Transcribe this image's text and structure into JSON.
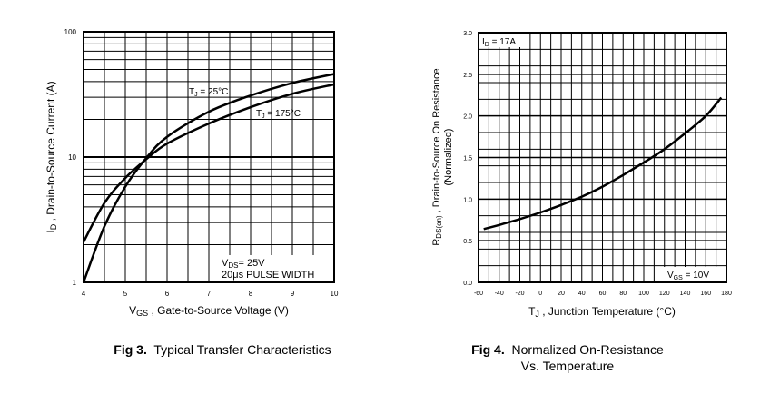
{
  "chart_data": [
    {
      "type": "line",
      "yscale": "log",
      "xlim": [
        4,
        10
      ],
      "ylim": [
        1,
        100
      ],
      "xticks": [
        "4",
        "5",
        "6",
        "7",
        "8",
        "9",
        "10"
      ],
      "yticks": [
        "1",
        "10",
        "100"
      ],
      "xlabel": {
        "main": "V",
        "sub": "GS",
        "rest": " , Gate-to-Source Voltage (V)"
      },
      "ylabel": {
        "main": "I",
        "sub": "D",
        "rest": " , Drain-to-Source Current (A)"
      },
      "series": [
        {
          "name": "TJ = 25°C",
          "x": [
            4.0,
            4.5,
            5.0,
            5.5,
            6.0,
            7.0,
            8.0,
            9.0,
            10.0
          ],
          "y": [
            1.0,
            2.8,
            5.8,
            9.8,
            14.5,
            23.0,
            31.0,
            39.0,
            46.0
          ]
        },
        {
          "name": "TJ = 175°C",
          "x": [
            4.0,
            4.5,
            5.0,
            5.5,
            6.0,
            7.0,
            8.0,
            9.0,
            10.0
          ],
          "y": [
            2.1,
            4.3,
            6.8,
            9.6,
            12.8,
            18.5,
            25.0,
            32.0,
            38.0
          ]
        }
      ],
      "series_labels": [
        {
          "main": "T",
          "sub": "J",
          "rest": " = 25°C"
        },
        {
          "main": "T",
          "sub": "J",
          "rest": " = 175°C"
        }
      ],
      "annotation": {
        "line1": {
          "main": "V",
          "sub": "DS",
          "rest": "= 25V"
        },
        "line2": "20μs PULSE WIDTH"
      },
      "caption": {
        "bold": "Fig 3.",
        "text": "Typical Transfer Characteristics"
      }
    },
    {
      "type": "line",
      "xlim": [
        -60,
        180
      ],
      "ylim": [
        0,
        3
      ],
      "xticks": [
        "-60",
        "-40",
        "-20",
        "0",
        "20",
        "40",
        "60",
        "80",
        "100",
        "120",
        "140",
        "160",
        "180"
      ],
      "yticks": [
        "0.0",
        "0.5",
        "1.0",
        "1.5",
        "2.0",
        "2.5",
        "3.0"
      ],
      "xlabel": {
        "main": "T",
        "sub": "J",
        "rest": " , Junction Temperature (°C)"
      },
      "ylabel": {
        "main": "R",
        "sub": "DS(on)",
        "rest": " ,  Drain-to-Source On Resistance",
        "line2": "(Normalized)"
      },
      "series": [
        {
          "x": [
            -55,
            -40,
            -20,
            0,
            20,
            40,
            60,
            80,
            100,
            120,
            140,
            160,
            175
          ],
          "y": [
            0.64,
            0.69,
            0.76,
            0.84,
            0.93,
            1.03,
            1.15,
            1.29,
            1.44,
            1.6,
            1.79,
            2.0,
            2.22
          ]
        }
      ],
      "annotation_top": {
        "main": "I",
        "sub": "D",
        "rest": " = 17A"
      },
      "annotation_bottom": {
        "main": "V",
        "sub": "GS",
        "rest": " = 10V"
      },
      "caption": {
        "bold": "Fig 4.",
        "text": "Normalized On-Resistance",
        "line2": "Vs. Temperature"
      }
    }
  ]
}
